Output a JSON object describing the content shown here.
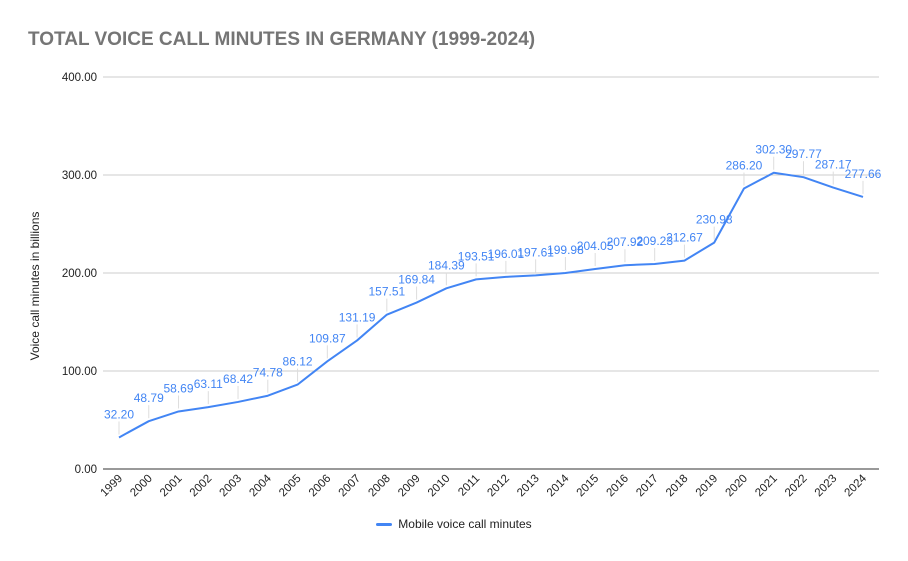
{
  "chart_data": {
    "type": "line",
    "title": "TOTAL VOICE CALL MINUTES IN GERMANY (1999-2024)",
    "xlabel": "",
    "ylabel": "Voice call minutes in billions",
    "ylim": [
      0,
      400
    ],
    "yticks": [
      "0.00",
      "100.00",
      "200.00",
      "300.00",
      "400.00"
    ],
    "grid": true,
    "legend_position": "bottom",
    "categories": [
      "1999",
      "2000",
      "2001",
      "2002",
      "2003",
      "2004",
      "2005",
      "2006",
      "2007",
      "2008",
      "2009",
      "2010",
      "2011",
      "2012",
      "2013",
      "2014",
      "2015",
      "2016",
      "2017",
      "2018",
      "2019",
      "2020",
      "2021",
      "2022",
      "2023",
      "2024"
    ],
    "series": [
      {
        "name": "Mobile voice call minutes",
        "color": "#4285f4",
        "values": [
          32.2,
          48.79,
          58.69,
          63.11,
          68.42,
          74.78,
          86.12,
          109.87,
          131.19,
          157.51,
          169.84,
          184.39,
          193.51,
          196.01,
          197.61,
          199.98,
          204.05,
          207.92,
          209.23,
          212.67,
          230.98,
          286.2,
          302.3,
          297.77,
          287.17,
          277.66
        ]
      }
    ]
  }
}
